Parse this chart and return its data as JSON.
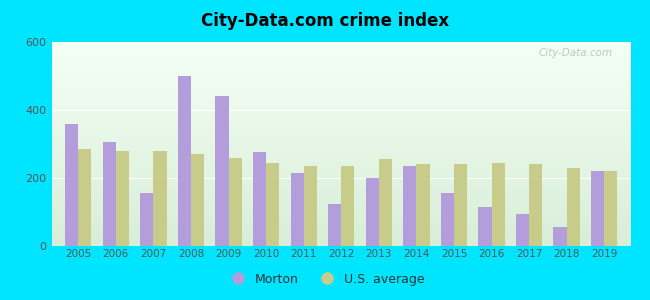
{
  "title": "City-Data.com crime index",
  "years": [
    2005,
    2006,
    2007,
    2008,
    2009,
    2010,
    2011,
    2012,
    2013,
    2014,
    2015,
    2016,
    2017,
    2018,
    2019
  ],
  "morton": [
    360,
    305,
    155,
    500,
    440,
    275,
    215,
    125,
    200,
    235,
    155,
    115,
    95,
    55,
    220
  ],
  "us_avg": [
    285,
    280,
    280,
    270,
    260,
    245,
    235,
    235,
    255,
    240,
    240,
    245,
    240,
    230,
    220
  ],
  "morton_color": "#b39ddb",
  "us_avg_color": "#c8cc8a",
  "outer_bg": "#00e5ff",
  "plot_bg_top": "#e8f5e8",
  "plot_bg_bottom": "#f8fff8",
  "ylim": [
    0,
    600
  ],
  "yticks": [
    0,
    200,
    400,
    600
  ],
  "bar_width": 0.35,
  "legend_morton": "Morton",
  "legend_us": "U.S. average",
  "watermark": "City-Data.com"
}
